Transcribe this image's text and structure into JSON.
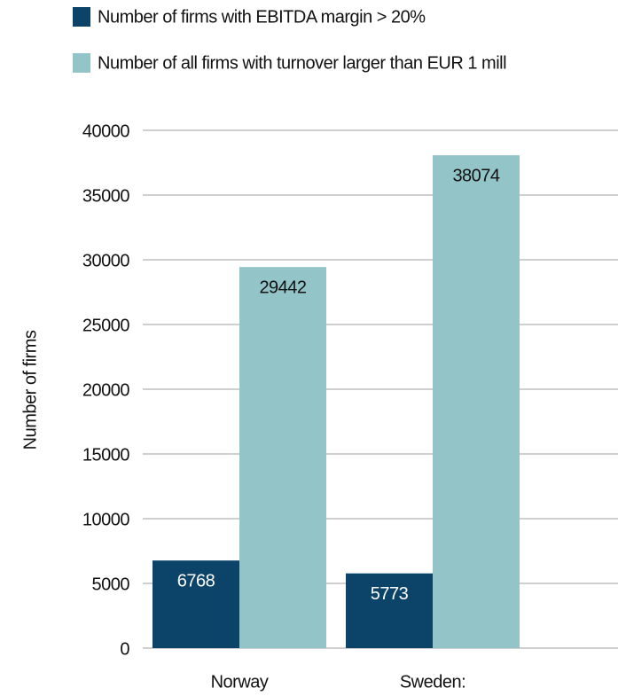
{
  "chart_data": {
    "type": "bar",
    "categories": [
      "Norway",
      "Sweden:"
    ],
    "series": [
      {
        "name": "Number of firms with EBITDA margin > 20%",
        "color": "#0b4468",
        "values": [
          6768,
          5773
        ]
      },
      {
        "name": "Number of all firms with turnover larger than EUR 1 mill",
        "color": "#93c4c7",
        "values": [
          29442,
          38074
        ]
      }
    ],
    "y_label": "Number of firms",
    "ylim": [
      0,
      40000
    ],
    "yticks": [
      0,
      5000,
      10000,
      15000,
      20000,
      25000,
      30000,
      35000,
      40000
    ],
    "grid": true,
    "legend": "top"
  }
}
